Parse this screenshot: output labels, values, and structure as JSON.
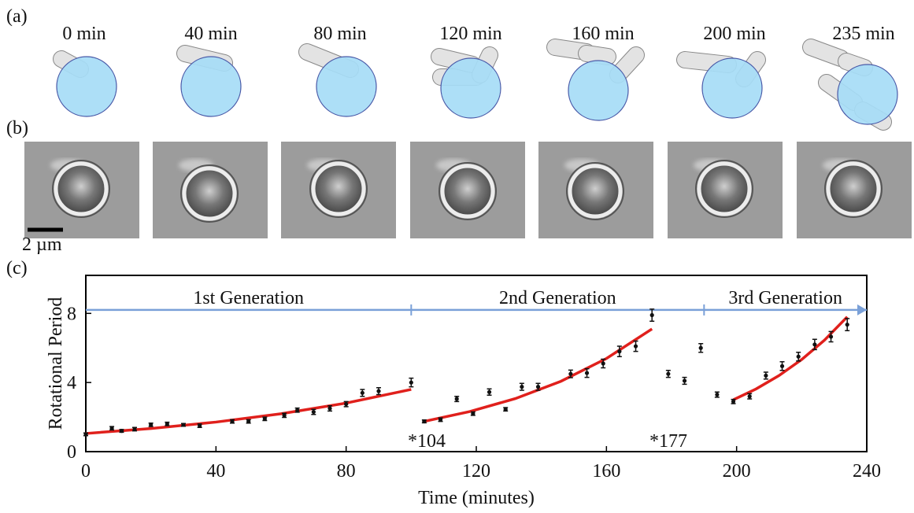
{
  "panel_a": {
    "label": "(a)",
    "times": [
      "0 min",
      "40 min",
      "80 min",
      "120 min",
      "160 min",
      "200 min",
      "235 min"
    ]
  },
  "panel_b": {
    "label": "(b)",
    "scale_bar": "2 µm"
  },
  "chart_data": {
    "type": "scatter",
    "panel_label": "(c)",
    "xlabel": "Time (minutes)",
    "ylabel": "Rotational Period",
    "xlim": [
      0,
      240
    ],
    "xticks": [
      0,
      40,
      80,
      120,
      160,
      200,
      240
    ],
    "ylim": [
      0,
      10.2
    ],
    "yticks": [
      0,
      4,
      8
    ],
    "points": {
      "color": "#111111",
      "x": [
        0,
        8,
        11,
        15,
        20,
        25,
        30,
        35,
        45,
        50,
        55,
        61,
        65,
        70,
        75,
        80,
        85,
        90,
        100,
        104,
        109,
        114,
        119,
        124,
        129,
        134,
        139,
        149,
        154,
        159,
        164,
        169,
        174,
        179,
        184,
        189,
        194,
        199,
        204,
        209,
        214,
        219,
        224,
        229,
        234
      ],
      "values": [
        1.0,
        1.35,
        1.2,
        1.3,
        1.55,
        1.6,
        1.55,
        1.5,
        1.75,
        1.75,
        1.9,
        2.1,
        2.4,
        2.3,
        2.5,
        2.75,
        3.4,
        3.5,
        4.0,
        1.75,
        1.85,
        3.05,
        2.2,
        3.45,
        2.45,
        3.75,
        3.75,
        4.5,
        4.55,
        5.1,
        5.8,
        6.1,
        7.9,
        4.5,
        4.1,
        6.0,
        3.3,
        2.9,
        3.2,
        4.4,
        4.95,
        5.5,
        6.2,
        6.65,
        7.35
      ],
      "errors": [
        0.08,
        0.1,
        0.08,
        0.1,
        0.1,
        0.1,
        0.08,
        0.1,
        0.1,
        0.1,
        0.1,
        0.12,
        0.12,
        0.15,
        0.15,
        0.15,
        0.2,
        0.2,
        0.25,
        0.08,
        0.1,
        0.15,
        0.1,
        0.18,
        0.1,
        0.2,
        0.2,
        0.22,
        0.25,
        0.25,
        0.3,
        0.3,
        0.35,
        0.2,
        0.2,
        0.25,
        0.15,
        0.12,
        0.15,
        0.2,
        0.25,
        0.25,
        0.3,
        0.3,
        0.35
      ]
    },
    "fits": [
      {
        "color": "#e0201c",
        "x": [
          0,
          20,
          40,
          60,
          80,
          100
        ],
        "values": [
          1.05,
          1.34,
          1.71,
          2.19,
          2.81,
          3.6
        ]
      },
      {
        "color": "#e0201c",
        "x": [
          104,
          118,
          132,
          146,
          160,
          174
        ],
        "values": [
          1.75,
          2.32,
          3.07,
          4.07,
          5.39,
          7.1
        ]
      },
      {
        "color": "#e0201c",
        "x": [
          199,
          206,
          213,
          220,
          227,
          234
        ],
        "values": [
          3.0,
          3.63,
          4.4,
          5.33,
          6.45,
          7.8
        ]
      }
    ],
    "generations": {
      "color": "#7aa0d8",
      "level": 8.2,
      "spans": [
        {
          "label": "1st Generation",
          "start": 0,
          "end": 100
        },
        {
          "label": "2nd Generation",
          "start": 100,
          "end": 190
        },
        {
          "label": "3rd Generation",
          "start": 190,
          "end": 240
        }
      ]
    },
    "annotations": [
      "*104",
      "*177"
    ]
  }
}
